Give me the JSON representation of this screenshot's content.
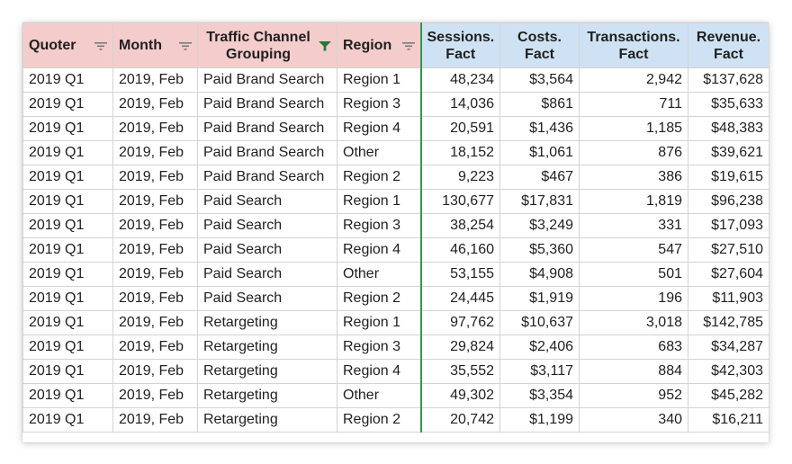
{
  "sheet": {
    "headers": [
      {
        "label": "Quoter",
        "filter": "filter-lines-icon"
      },
      {
        "label": "Month",
        "filter": "filter-lines-icon"
      },
      {
        "label": "Traffic Channel Grouping",
        "filter": "filter-funnel-active-icon"
      },
      {
        "label": "Region",
        "filter": "filter-lines-icon"
      },
      {
        "label": "Sessions. Fact"
      },
      {
        "label": "Costs. Fact"
      },
      {
        "label": "Transactions. Fact"
      },
      {
        "label": "Revenue. Fact"
      }
    ],
    "rows": [
      [
        "2019 Q1",
        "2019, Feb",
        "Paid Brand Search",
        "Region 1",
        "48,234",
        "$3,564",
        "2,942",
        "$137,628"
      ],
      [
        "2019 Q1",
        "2019, Feb",
        "Paid Brand Search",
        "Region 3",
        "14,036",
        "$861",
        "711",
        "$35,633"
      ],
      [
        "2019 Q1",
        "2019, Feb",
        "Paid Brand Search",
        "Region 4",
        "20,591",
        "$1,436",
        "1,185",
        "$48,383"
      ],
      [
        "2019 Q1",
        "2019, Feb",
        "Paid Brand Search",
        "Other",
        "18,152",
        "$1,061",
        "876",
        "$39,621"
      ],
      [
        "2019 Q1",
        "2019, Feb",
        "Paid Brand Search",
        "Region 2",
        "9,223",
        "$467",
        "386",
        "$19,615"
      ],
      [
        "2019 Q1",
        "2019, Feb",
        "Paid Search",
        "Region 1",
        "130,677",
        "$17,831",
        "1,819",
        "$96,238"
      ],
      [
        "2019 Q1",
        "2019, Feb",
        "Paid Search",
        "Region 3",
        "38,254",
        "$3,249",
        "331",
        "$17,093"
      ],
      [
        "2019 Q1",
        "2019, Feb",
        "Paid Search",
        "Region 4",
        "46,160",
        "$5,360",
        "547",
        "$27,510"
      ],
      [
        "2019 Q1",
        "2019, Feb",
        "Paid Search",
        "Other",
        "53,155",
        "$4,908",
        "501",
        "$27,604"
      ],
      [
        "2019 Q1",
        "2019, Feb",
        "Paid Search",
        "Region 2",
        "24,445",
        "$1,919",
        "196",
        "$11,903"
      ],
      [
        "2019 Q1",
        "2019, Feb",
        "Retargeting",
        "Region 1",
        "97,762",
        "$10,637",
        "3,018",
        "$142,785"
      ],
      [
        "2019 Q1",
        "2019, Feb",
        "Retargeting",
        "Region 3",
        "29,824",
        "$2,406",
        "683",
        "$34,287"
      ],
      [
        "2019 Q1",
        "2019, Feb",
        "Retargeting",
        "Region 4",
        "35,552",
        "$3,117",
        "884",
        "$42,303"
      ],
      [
        "2019 Q1",
        "2019, Feb",
        "Retargeting",
        "Other",
        "49,302",
        "$3,354",
        "952",
        "$45,282"
      ],
      [
        "2019 Q1",
        "2019, Feb",
        "Retargeting",
        "Region 2",
        "20,742",
        "$1,199",
        "340",
        "$16,211"
      ]
    ]
  },
  "colors": {
    "dimension_header": "#f4cccc",
    "metric_header": "#cfe2f3",
    "active_filter": "#1e7d32",
    "separator": "#2e9a4e",
    "filter_lines": "#7a7a7a"
  }
}
